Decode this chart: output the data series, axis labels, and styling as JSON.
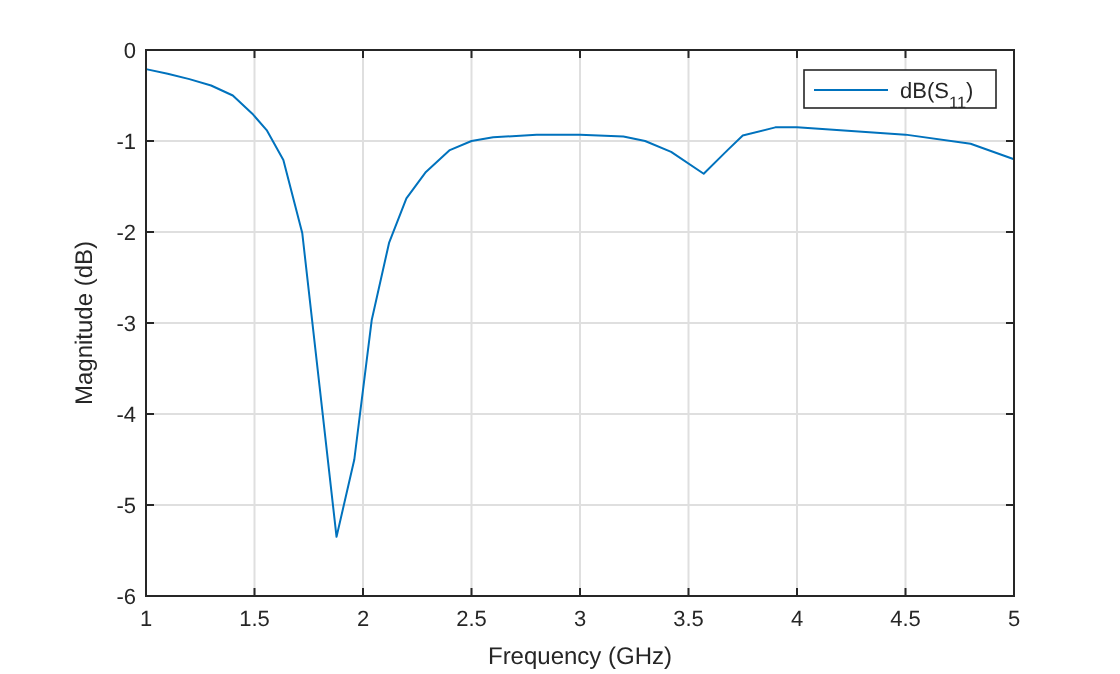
{
  "chart_data": {
    "type": "line",
    "xlabel": "Frequency (GHz)",
    "ylabel": "Magnitude (dB)",
    "xlim": [
      1,
      5
    ],
    "xticks": [
      1,
      1.5,
      2,
      2.5,
      3,
      3.5,
      4,
      4.5,
      5
    ],
    "ylim": [
      -6,
      0
    ],
    "yticks": [
      -6,
      -5,
      -4,
      -3,
      -2,
      -1,
      0
    ],
    "grid": true,
    "legend": "top right",
    "series": [
      {
        "name": "dB(S$_{11}$)",
        "color": "#0072bd",
        "x": [
          1,
          1.1,
          1.2,
          1.3,
          1.4,
          1.49,
          1.556,
          1.633,
          1.72,
          1.8,
          1.878,
          1.96,
          2.04,
          2.12,
          2.2,
          2.29,
          2.4,
          2.5,
          2.6,
          2.8,
          3,
          3.2,
          3.3,
          3.42,
          3.57,
          3.68,
          3.75,
          3.9,
          4,
          4.5,
          4.8,
          5
        ],
        "values": [
          -0.21,
          -0.26,
          -0.32,
          -0.39,
          -0.5,
          -0.7,
          -0.88,
          -1.21,
          -2.01,
          -3.7,
          -5.35,
          -4.5,
          -2.97,
          -2.12,
          -1.63,
          -1.34,
          -1.1,
          -1.0,
          -0.96,
          -0.93,
          -0.93,
          -0.95,
          -1.0,
          -1.12,
          -1.36,
          -1.1,
          -0.94,
          -0.85,
          -0.85,
          -0.93,
          -1.03,
          -1.2
        ]
      }
    ]
  }
}
